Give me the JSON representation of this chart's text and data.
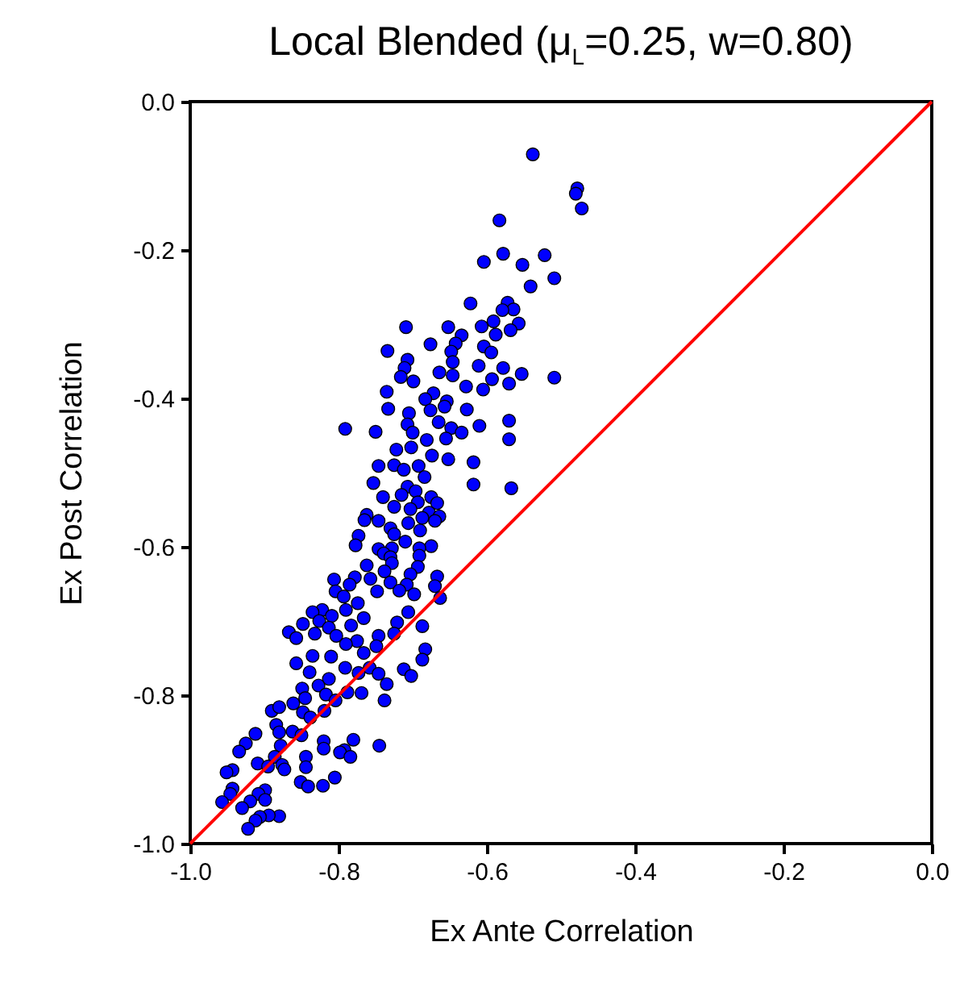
{
  "chart_data": {
    "type": "scatter",
    "title": "Local Blended (μ$_{L}$=0.25, w=0.80)",
    "xlabel": "Ex Ante Correlation",
    "ylabel": "Ex Post Correlation",
    "xlim": [
      -1,
      0
    ],
    "ylim": [
      -1,
      0
    ],
    "xticks": [
      {
        "value": -1,
        "label": "-1.0"
      },
      {
        "value": -0.8,
        "label": "-0.8"
      },
      {
        "value": -0.6,
        "label": "-0.6"
      },
      {
        "value": -0.4,
        "label": "-0.4"
      },
      {
        "value": -0.2,
        "label": "-0.2"
      },
      {
        "value": 0,
        "label": "0.0"
      }
    ],
    "yticks": [
      {
        "value": -1,
        "label": "-1.0"
      },
      {
        "value": -0.8,
        "label": "-0.8"
      },
      {
        "value": -0.6,
        "label": "-0.6"
      },
      {
        "value": -0.4,
        "label": "-0.4"
      },
      {
        "value": -0.2,
        "label": "-0.2"
      },
      {
        "value": 0,
        "label": "0.0"
      }
    ],
    "grid": false,
    "series": [
      {
        "marker": "circle",
        "color": "#0000ff",
        "x": [
          -0.538,
          -0.478,
          -0.48,
          -0.472,
          -0.583,
          -0.578,
          -0.604,
          -0.522,
          -0.552,
          -0.509,
          -0.541,
          -0.622,
          -0.572,
          -0.564,
          -0.579,
          -0.557,
          -0.591,
          -0.607,
          -0.568,
          -0.588,
          -0.709,
          -0.652,
          -0.634,
          -0.642,
          -0.676,
          -0.734,
          -0.604,
          -0.594,
          -0.648,
          -0.707,
          -0.646,
          -0.711,
          -0.611,
          -0.578,
          -0.553,
          -0.509,
          -0.664,
          -0.646,
          -0.716,
          -0.699,
          -0.593,
          -0.57,
          -0.628,
          -0.605,
          -0.735,
          -0.672,
          -0.683,
          -0.654,
          -0.733,
          -0.705,
          -0.676,
          -0.657,
          -0.627,
          -0.791,
          -0.75,
          -0.61,
          -0.57,
          -0.57,
          -0.665,
          -0.648,
          -0.634,
          -0.707,
          -0.7,
          -0.681,
          -0.655,
          -0.722,
          -0.702,
          -0.674,
          -0.652,
          -0.618,
          -0.725,
          -0.746,
          -0.692,
          -0.712,
          -0.684,
          -0.753,
          -0.618,
          -0.567,
          -0.707,
          -0.696,
          -0.715,
          -0.74,
          -0.675,
          -0.693,
          -0.725,
          -0.667,
          -0.703,
          -0.678,
          -0.762,
          -0.664,
          -0.687,
          -0.746,
          -0.765,
          -0.67,
          -0.706,
          -0.73,
          -0.725,
          -0.69,
          -0.773,
          -0.777,
          -0.71,
          -0.675,
          -0.746,
          -0.728,
          -0.691,
          -0.739,
          -0.73,
          -0.691,
          -0.762,
          -0.728,
          -0.693,
          -0.738,
          -0.703,
          -0.667,
          -0.778,
          -0.806,
          -0.757,
          -0.73,
          -0.785,
          -0.708,
          -0.67,
          -0.748,
          -0.718,
          -0.698,
          -0.663,
          -0.804,
          -0.793,
          -0.774,
          -0.822,
          -0.835,
          -0.79,
          -0.706,
          -0.809,
          -0.766,
          -0.721,
          -0.848,
          -0.826,
          -0.783,
          -0.687,
          -0.813,
          -0.867,
          -0.832,
          -0.803,
          -0.857,
          -0.746,
          -0.725,
          -0.775,
          -0.749,
          -0.79,
          -0.766,
          -0.683,
          -0.687,
          -0.835,
          -0.857,
          -0.81,
          -0.791,
          -0.758,
          -0.839,
          -0.773,
          -0.712,
          -0.702,
          -0.746,
          -0.813,
          -0.827,
          -0.735,
          -0.849,
          -0.817,
          -0.788,
          -0.769,
          -0.845,
          -0.738,
          -0.804,
          -0.861,
          -0.89,
          -0.88,
          -0.848,
          -0.819,
          -0.838,
          -0.884,
          -0.862,
          -0.912,
          -0.88,
          -0.85,
          -0.78,
          -0.925,
          -0.745,
          -0.82,
          -0.878,
          -0.82,
          -0.934,
          -0.792,
          -0.798,
          -0.784,
          -0.886,
          -0.844,
          -0.909,
          -0.876,
          -0.895,
          -0.844,
          -0.873,
          -0.943,
          -0.951,
          -0.805,
          -0.851,
          -0.821,
          -0.841,
          -0.943,
          -0.899,
          -0.946,
          -0.908,
          -0.899,
          -0.919,
          -0.957,
          -0.93,
          -0.88,
          -0.894,
          -0.906,
          -0.912,
          -0.922
        ],
        "values": [
          -0.071,
          -0.117,
          -0.124,
          -0.144,
          -0.16,
          -0.205,
          -0.216,
          -0.207,
          -0.22,
          -0.238,
          -0.249,
          -0.272,
          -0.271,
          -0.28,
          -0.281,
          -0.299,
          -0.296,
          -0.303,
          -0.308,
          -0.314,
          -0.304,
          -0.304,
          -0.315,
          -0.326,
          -0.327,
          -0.336,
          -0.33,
          -0.338,
          -0.337,
          -0.348,
          -0.351,
          -0.359,
          -0.356,
          -0.359,
          -0.367,
          -0.372,
          -0.365,
          -0.369,
          -0.371,
          -0.377,
          -0.374,
          -0.38,
          -0.384,
          -0.388,
          -0.391,
          -0.393,
          -0.401,
          -0.404,
          -0.414,
          -0.42,
          -0.416,
          -0.411,
          -0.415,
          -0.441,
          -0.445,
          -0.437,
          -0.43,
          -0.455,
          -0.432,
          -0.44,
          -0.446,
          -0.435,
          -0.446,
          -0.456,
          -0.454,
          -0.469,
          -0.466,
          -0.477,
          -0.482,
          -0.486,
          -0.49,
          -0.491,
          -0.491,
          -0.496,
          -0.506,
          -0.514,
          -0.516,
          -0.521,
          -0.519,
          -0.525,
          -0.53,
          -0.533,
          -0.533,
          -0.54,
          -0.546,
          -0.541,
          -0.549,
          -0.554,
          -0.557,
          -0.559,
          -0.561,
          -0.565,
          -0.564,
          -0.565,
          -0.568,
          -0.575,
          -0.583,
          -0.578,
          -0.585,
          -0.598,
          -0.593,
          -0.599,
          -0.603,
          -0.602,
          -0.602,
          -0.609,
          -0.614,
          -0.612,
          -0.625,
          -0.622,
          -0.627,
          -0.633,
          -0.637,
          -0.64,
          -0.641,
          -0.644,
          -0.643,
          -0.648,
          -0.651,
          -0.651,
          -0.653,
          -0.66,
          -0.659,
          -0.664,
          -0.669,
          -0.66,
          -0.667,
          -0.676,
          -0.685,
          -0.688,
          -0.685,
          -0.688,
          -0.693,
          -0.696,
          -0.702,
          -0.704,
          -0.7,
          -0.706,
          -0.707,
          -0.709,
          -0.715,
          -0.717,
          -0.72,
          -0.723,
          -0.72,
          -0.717,
          -0.727,
          -0.734,
          -0.731,
          -0.743,
          -0.738,
          -0.752,
          -0.747,
          -0.757,
          -0.748,
          -0.763,
          -0.763,
          -0.769,
          -0.77,
          -0.765,
          -0.774,
          -0.771,
          -0.778,
          -0.787,
          -0.785,
          -0.791,
          -0.799,
          -0.796,
          -0.797,
          -0.804,
          -0.807,
          -0.807,
          -0.811,
          -0.821,
          -0.816,
          -0.823,
          -0.821,
          -0.83,
          -0.84,
          -0.849,
          -0.852,
          -0.85,
          -0.854,
          -0.86,
          -0.865,
          -0.868,
          -0.862,
          -0.868,
          -0.872,
          -0.876,
          -0.874,
          -0.877,
          -0.883,
          -0.883,
          -0.883,
          -0.892,
          -0.894,
          -0.896,
          -0.897,
          -0.9,
          -0.901,
          -0.904,
          -0.911,
          -0.917,
          -0.922,
          -0.923,
          -0.926,
          -0.928,
          -0.933,
          -0.933,
          -0.941,
          -0.943,
          -0.944,
          -0.952,
          -0.963,
          -0.962,
          -0.964,
          -0.969,
          -0.98
        ]
      },
      {
        "type": "line",
        "color": "#ff0000",
        "x": [
          -1,
          0
        ],
        "values": [
          -1,
          0
        ]
      }
    ]
  }
}
